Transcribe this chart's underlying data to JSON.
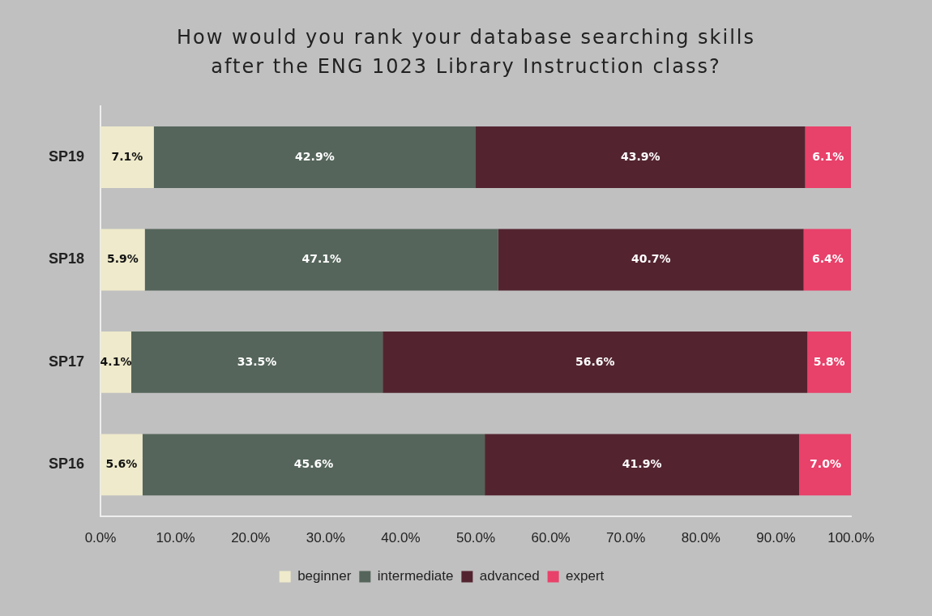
{
  "chart_data": {
    "type": "bar",
    "orientation": "horizontal",
    "stacked": true,
    "title": "How would you rank your database searching skills after the ENG 1023 Library Instruction class?",
    "categories": [
      "SP19",
      "SP18",
      "SP17",
      "SP16"
    ],
    "series": [
      {
        "name": "beginner",
        "color": "#eeeacb",
        "values": [
          7.1,
          5.9,
          4.1,
          5.6
        ],
        "value_labels": [
          "7.1%",
          "5.9%",
          "4.1%",
          "5.6%"
        ]
      },
      {
        "name": "intermediate",
        "color": "#55655b",
        "values": [
          42.9,
          47.1,
          33.5,
          45.6
        ],
        "value_labels": [
          "42.9%",
          "47.1%",
          "33.5%",
          "45.6%"
        ]
      },
      {
        "name": "advanced",
        "color": "#532430",
        "values": [
          43.9,
          40.7,
          56.6,
          41.9
        ],
        "value_labels": [
          "43.9%",
          "40.7%",
          "56.6%",
          "41.9%"
        ]
      },
      {
        "name": "expert",
        "color": "#e8416a",
        "values": [
          6.1,
          6.4,
          5.8,
          7.0
        ],
        "value_labels": [
          "6.1%",
          "6.4%",
          "5.8%",
          "7.0%"
        ]
      }
    ],
    "xlim": [
      0,
      100
    ],
    "xticks": [
      {
        "value": 0,
        "label": "0.0%"
      },
      {
        "value": 10,
        "label": "10.0%"
      },
      {
        "value": 20,
        "label": "20.0%"
      },
      {
        "value": 30,
        "label": "30.0%"
      },
      {
        "value": 40,
        "label": "40.0%"
      },
      {
        "value": 50,
        "label": "50.0%"
      },
      {
        "value": 60,
        "label": "60.0%"
      },
      {
        "value": 70,
        "label": "70.0%"
      },
      {
        "value": 80,
        "label": "80.0%"
      },
      {
        "value": 90,
        "label": "90.0%"
      },
      {
        "value": 100,
        "label": "100.0%"
      }
    ],
    "grid": false,
    "legend": "bottom"
  }
}
